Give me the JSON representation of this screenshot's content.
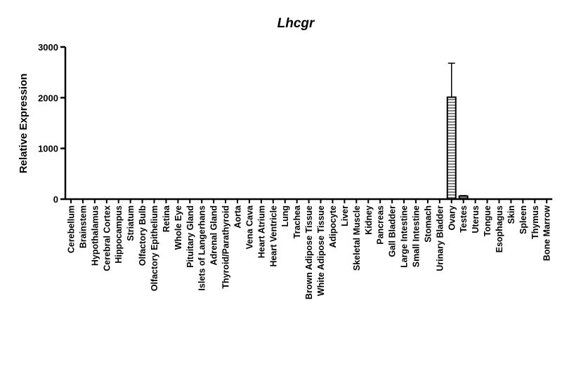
{
  "chart_data": {
    "type": "bar",
    "title": "Lhcgr",
    "xlabel": "",
    "ylabel": "Relative Expression",
    "ylim": [
      0,
      3000
    ],
    "yticks": [
      0,
      1000,
      2000,
      3000
    ],
    "grid": false,
    "categories": [
      "Cerebellum",
      "Brainstem",
      "Hypothalamus",
      "Cerebral Cortex",
      "Hippocampus",
      "Striatum",
      "Olfactory Bulb",
      "Olfactory Epithelium",
      "Retina",
      "Whole Eye",
      "Pituitary Gland",
      "Islets of Langerhans",
      "Adrenal Gland",
      "Thyroid/Parathyroid",
      "Aorta",
      "Vena Cava",
      "Heart Atrium",
      "Heart Ventricle",
      "Lung",
      "Trachea",
      "Brown Adipose Tissue",
      "White Adipose Tissue",
      "Adipocyte",
      "Liver",
      "Skeletal Muscle",
      "Kidney",
      "Pancreas",
      "Gall Bladder",
      "Large Intestine",
      "Small Intestine",
      "Stomach",
      "Urinary Bladder",
      "Ovary",
      "Testes",
      "Uterus",
      "Tongue",
      "Esophagus",
      "Skin",
      "Spleen",
      "Thymus",
      "Bone Marrow"
    ],
    "values": [
      1,
      0,
      2,
      3,
      2,
      3,
      2,
      0,
      0,
      0,
      0,
      0,
      0,
      1,
      0,
      4,
      0,
      0,
      0,
      0,
      0,
      2,
      0,
      0,
      0,
      0,
      0,
      4,
      0,
      0,
      0,
      0,
      2010,
      60,
      0,
      0,
      0,
      0,
      0,
      0,
      0
    ],
    "error": [
      0,
      0,
      0,
      0,
      0,
      0,
      0,
      0,
      0,
      0,
      0,
      0,
      0,
      0,
      0,
      0,
      0,
      0,
      0,
      0,
      0,
      0,
      0,
      0,
      0,
      0,
      0,
      0,
      0,
      0,
      0,
      0,
      670,
      10,
      0,
      0,
      0,
      0,
      0,
      0,
      0
    ]
  }
}
